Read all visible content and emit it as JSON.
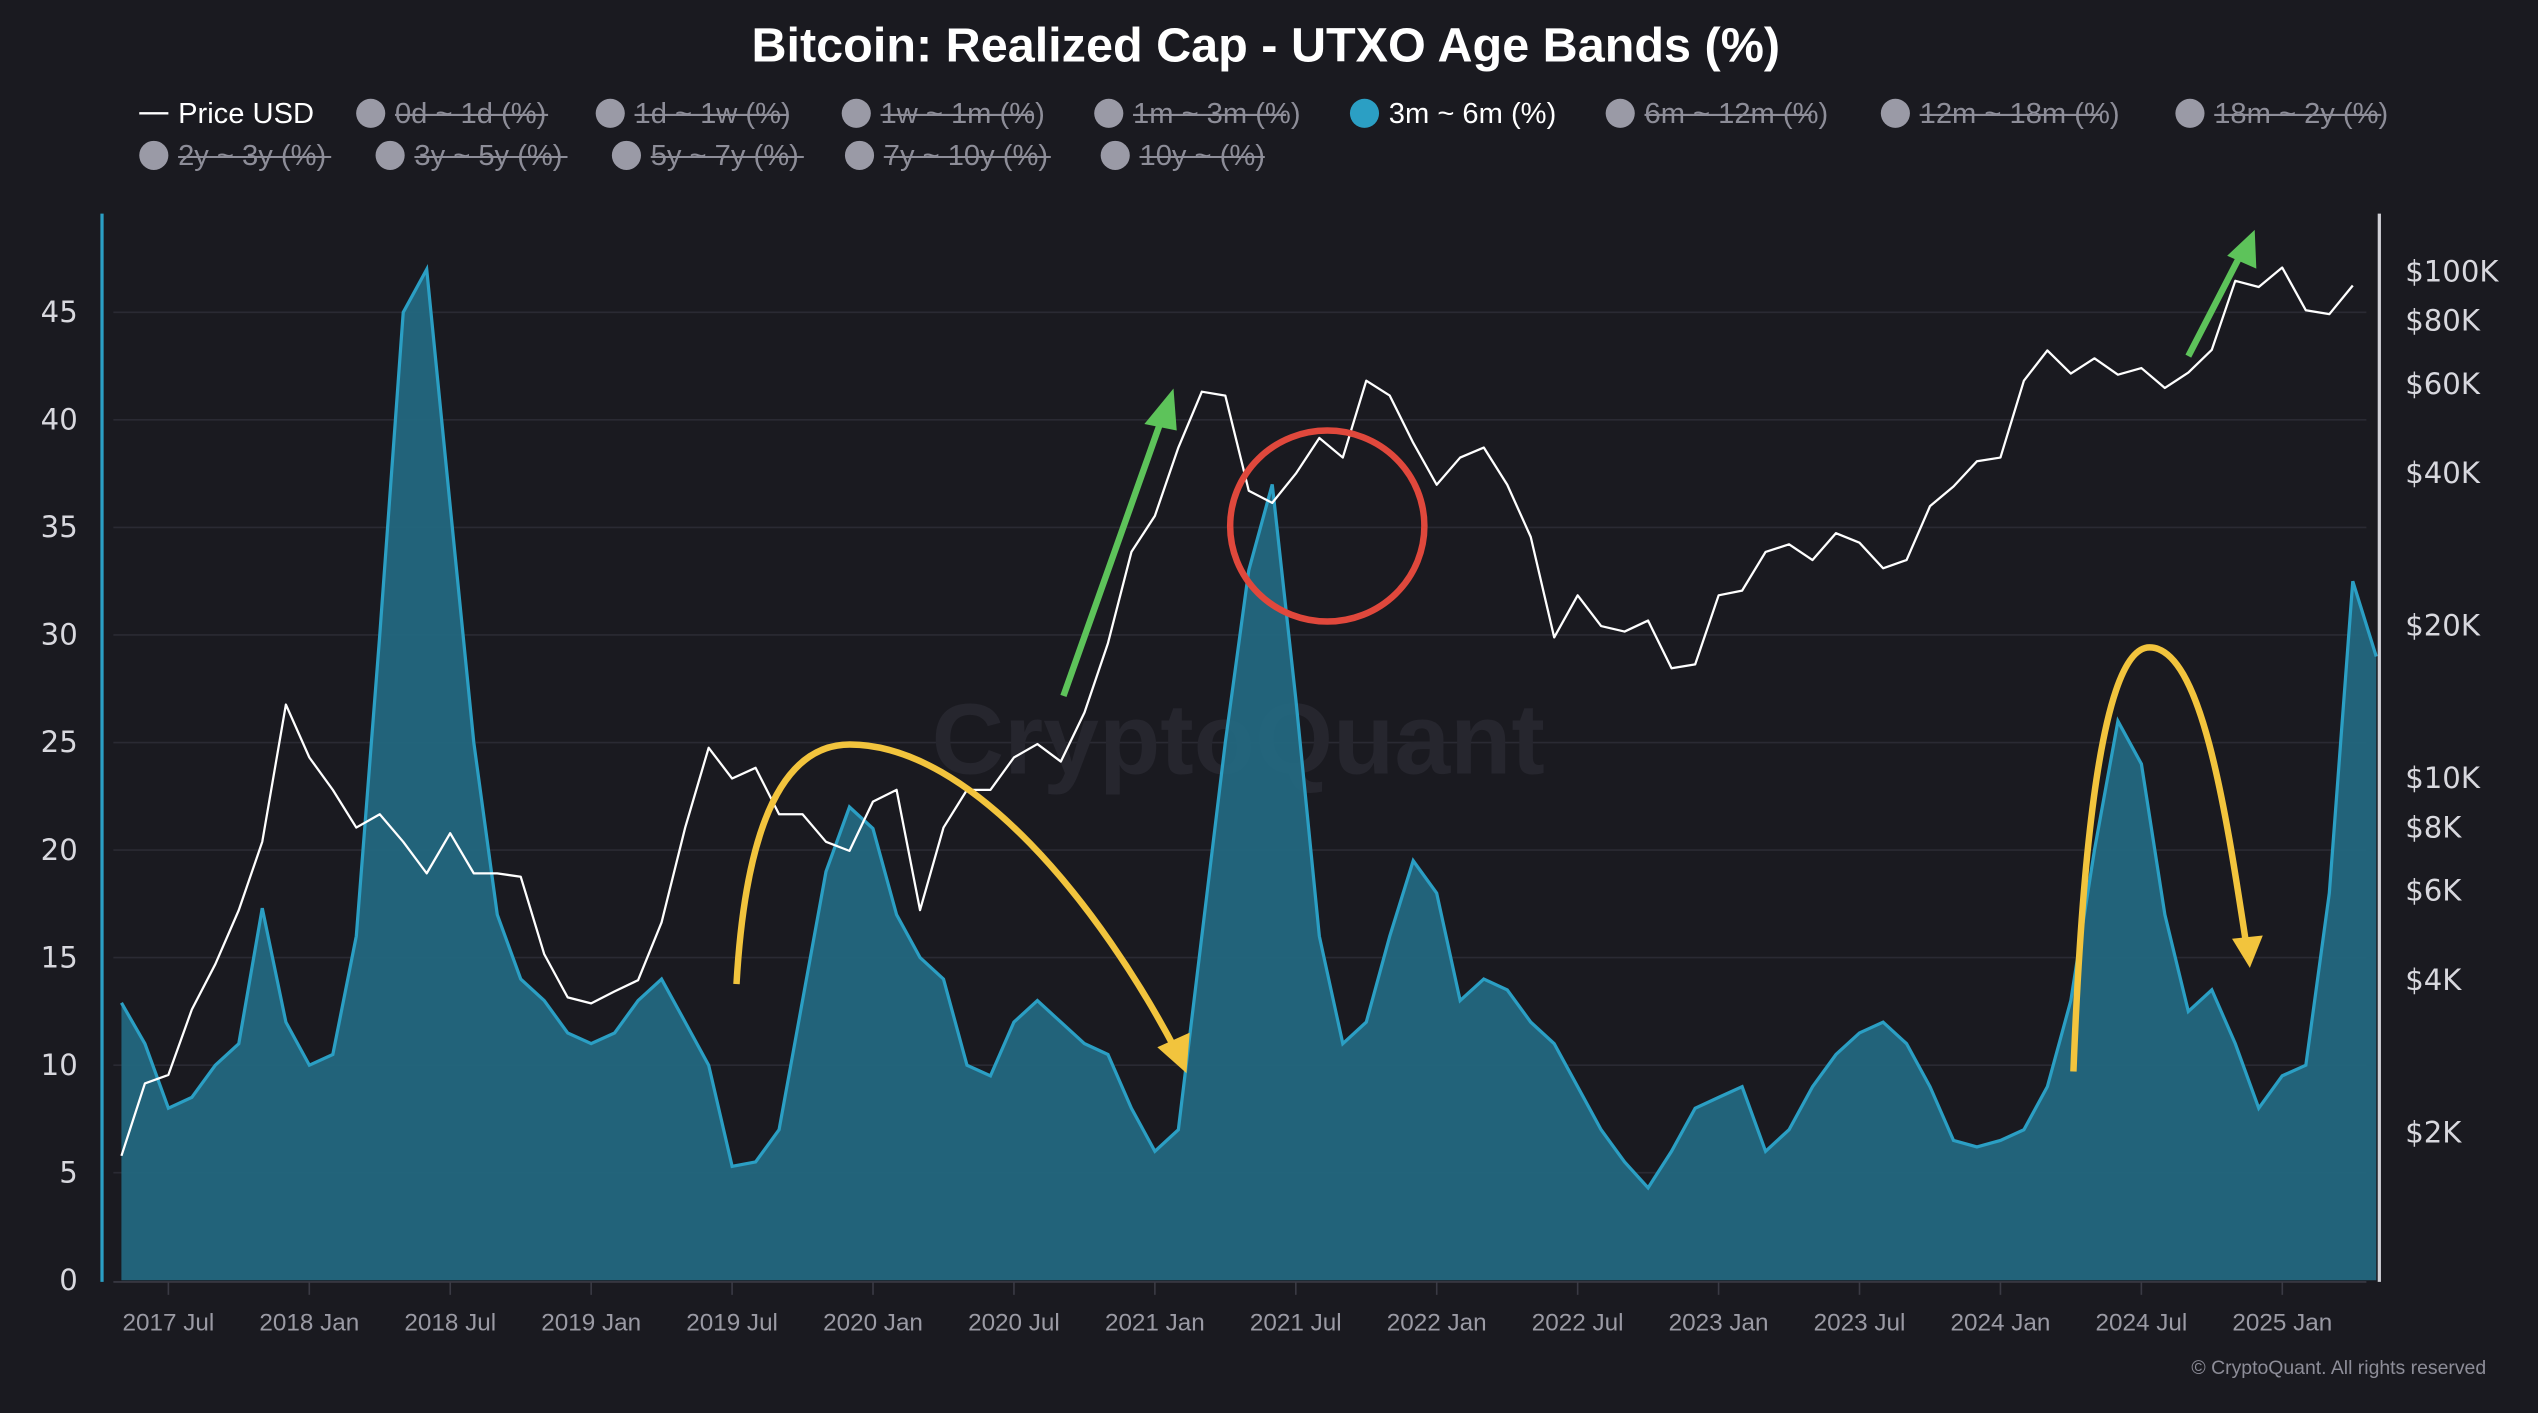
{
  "chart_data": {
    "type": "area",
    "title": "Bitcoin: Realized Cap - UTXO Age Bands (%)",
    "legend": [
      {
        "label": "Price USD",
        "type": "line",
        "color": "#ffffff",
        "enabled": true
      },
      {
        "label": "0d ~ 1d (%)",
        "enabled": false
      },
      {
        "label": "1d ~ 1w (%)",
        "enabled": false
      },
      {
        "label": "1w ~ 1m (%)",
        "enabled": false
      },
      {
        "label": "1m ~ 3m (%)",
        "enabled": false
      },
      {
        "label": "3m ~ 6m (%)",
        "color": "#2b9fc4",
        "enabled": true
      },
      {
        "label": "6m ~ 12m (%)",
        "enabled": false
      },
      {
        "label": "12m ~ 18m (%)",
        "enabled": false
      },
      {
        "label": "18m ~ 2y (%)",
        "enabled": false
      },
      {
        "label": "2y ~ 3y (%)",
        "enabled": false
      },
      {
        "label": "3y ~ 5y (%)",
        "enabled": false
      },
      {
        "label": "5y ~ 7y (%)",
        "enabled": false
      },
      {
        "label": "7y ~ 10y (%)",
        "enabled": false
      },
      {
        "label": "10y ~ (%)",
        "enabled": false
      }
    ],
    "x_ticks": [
      "2017 Jul",
      "2018 Jan",
      "2018 Jul",
      "2019 Jan",
      "2019 Jul",
      "2020 Jan",
      "2020 Jul",
      "2021 Jan",
      "2021 Jul",
      "2022 Jan",
      "2022 Jul",
      "2023 Jan",
      "2023 Jul",
      "2024 Jan",
      "2024 Jul",
      "2025 Jan"
    ],
    "y_left": {
      "label": "3m ~ 6m (%)",
      "ticks": [
        "0",
        "5",
        "10",
        "15",
        "20",
        "25",
        "30",
        "35",
        "40",
        "45"
      ],
      "range": [
        0,
        49
      ]
    },
    "y_right": {
      "label": "Price USD",
      "scale": "log",
      "ticks": [
        "$2K",
        "$4K",
        "$6K",
        "$8K",
        "$10K",
        "$20K",
        "$40K",
        "$60K",
        "$80K",
        "$100K"
      ]
    },
    "series": [
      {
        "name": "3m ~ 6m (%)",
        "type": "area",
        "color": "#2b9fc4",
        "fill": "#23677f",
        "points": [
          [
            "2017-05",
            12.9
          ],
          [
            "2017-06",
            11
          ],
          [
            "2017-07",
            8
          ],
          [
            "2017-08",
            8.5
          ],
          [
            "2017-09",
            10
          ],
          [
            "2017-10",
            11
          ],
          [
            "2017-11",
            17.3
          ],
          [
            "2017-12",
            12
          ],
          [
            "2018-01",
            10
          ],
          [
            "2018-02",
            10.5
          ],
          [
            "2018-03",
            16
          ],
          [
            "2018-04",
            30
          ],
          [
            "2018-05",
            45
          ],
          [
            "2018-06",
            47
          ],
          [
            "2018-07",
            36
          ],
          [
            "2018-08",
            25
          ],
          [
            "2018-09",
            17
          ],
          [
            "2018-10",
            14
          ],
          [
            "2018-11",
            13
          ],
          [
            "2018-12",
            11.5
          ],
          [
            "2019-01",
            11
          ],
          [
            "2019-02",
            11.5
          ],
          [
            "2019-03",
            13
          ],
          [
            "2019-04",
            14
          ],
          [
            "2019-05",
            12
          ],
          [
            "2019-06",
            10
          ],
          [
            "2019-07",
            5.3
          ],
          [
            "2019-08",
            5.5
          ],
          [
            "2019-09",
            7
          ],
          [
            "2019-10",
            13
          ],
          [
            "2019-11",
            19
          ],
          [
            "2019-12",
            22
          ],
          [
            "2020-01",
            21
          ],
          [
            "2020-02",
            17
          ],
          [
            "2020-03",
            15
          ],
          [
            "2020-04",
            14
          ],
          [
            "2020-05",
            10
          ],
          [
            "2020-06",
            9.5
          ],
          [
            "2020-07",
            12
          ],
          [
            "2020-08",
            13
          ],
          [
            "2020-09",
            12
          ],
          [
            "2020-10",
            11
          ],
          [
            "2020-11",
            10.5
          ],
          [
            "2020-12",
            8
          ],
          [
            "2021-01",
            6
          ],
          [
            "2021-02",
            7
          ],
          [
            "2021-03",
            16
          ],
          [
            "2021-04",
            25
          ],
          [
            "2021-05",
            33
          ],
          [
            "2021-06",
            37
          ],
          [
            "2021-07",
            27
          ],
          [
            "2021-08",
            16
          ],
          [
            "2021-09",
            11
          ],
          [
            "2021-10",
            12
          ],
          [
            "2021-11",
            16
          ],
          [
            "2021-12",
            19.5
          ],
          [
            "2022-01",
            18
          ],
          [
            "2022-02",
            13
          ],
          [
            "2022-03",
            14
          ],
          [
            "2022-04",
            13.5
          ],
          [
            "2022-05",
            12
          ],
          [
            "2022-06",
            11
          ],
          [
            "2022-07",
            9
          ],
          [
            "2022-08",
            7
          ],
          [
            "2022-09",
            5.5
          ],
          [
            "2022-10",
            4.3
          ],
          [
            "2022-11",
            6
          ],
          [
            "2022-12",
            8
          ],
          [
            "2023-01",
            8.5
          ],
          [
            "2023-02",
            9
          ],
          [
            "2023-03",
            6
          ],
          [
            "2023-04",
            7
          ],
          [
            "2023-05",
            9
          ],
          [
            "2023-06",
            10.5
          ],
          [
            "2023-07",
            11.5
          ],
          [
            "2023-08",
            12
          ],
          [
            "2023-09",
            11
          ],
          [
            "2023-10",
            9
          ],
          [
            "2023-11",
            6.5
          ],
          [
            "2023-12",
            6.2
          ],
          [
            "2024-01",
            6.5
          ],
          [
            "2024-02",
            7
          ],
          [
            "2024-03",
            9
          ],
          [
            "2024-04",
            13
          ],
          [
            "2024-05",
            20
          ],
          [
            "2024-06",
            26
          ],
          [
            "2024-07",
            24
          ],
          [
            "2024-08",
            17
          ],
          [
            "2024-09",
            12.5
          ],
          [
            "2024-10",
            13.5
          ],
          [
            "2024-11",
            11
          ],
          [
            "2024-12",
            8
          ],
          [
            "2025-01",
            9.5
          ],
          [
            "2025-02",
            10
          ],
          [
            "2025-03",
            18
          ],
          [
            "2025-04",
            32.5
          ],
          [
            "2025-05",
            29
          ]
        ]
      },
      {
        "name": "Price USD",
        "type": "line",
        "color": "#ffffff",
        "points": [
          [
            "2017-05",
            1800
          ],
          [
            "2017-06",
            2500
          ],
          [
            "2017-07",
            2600
          ],
          [
            "2017-08",
            3500
          ],
          [
            "2017-09",
            4300
          ],
          [
            "2017-10",
            5500
          ],
          [
            "2017-11",
            7500
          ],
          [
            "2017-12",
            14000
          ],
          [
            "2018-01",
            11000
          ],
          [
            "2018-02",
            9500
          ],
          [
            "2018-03",
            8000
          ],
          [
            "2018-04",
            8500
          ],
          [
            "2018-05",
            7500
          ],
          [
            "2018-06",
            6500
          ],
          [
            "2018-07",
            7800
          ],
          [
            "2018-08",
            6500
          ],
          [
            "2018-09",
            6500
          ],
          [
            "2018-10",
            6400
          ],
          [
            "2018-11",
            4500
          ],
          [
            "2018-12",
            3700
          ],
          [
            "2019-01",
            3600
          ],
          [
            "2019-02",
            3800
          ],
          [
            "2019-03",
            4000
          ],
          [
            "2019-04",
            5200
          ],
          [
            "2019-05",
            8000
          ],
          [
            "2019-06",
            11500
          ],
          [
            "2019-07",
            10000
          ],
          [
            "2019-08",
            10500
          ],
          [
            "2019-09",
            8500
          ],
          [
            "2019-10",
            8500
          ],
          [
            "2019-11",
            7500
          ],
          [
            "2019-12",
            7200
          ],
          [
            "2020-01",
            9000
          ],
          [
            "2020-02",
            9500
          ],
          [
            "2020-03",
            5500
          ],
          [
            "2020-04",
            8000
          ],
          [
            "2020-05",
            9500
          ],
          [
            "2020-06",
            9500
          ],
          [
            "2020-07",
            11000
          ],
          [
            "2020-08",
            11700
          ],
          [
            "2020-09",
            10800
          ],
          [
            "2020-10",
            13500
          ],
          [
            "2020-11",
            18500
          ],
          [
            "2020-12",
            28000
          ],
          [
            "2021-01",
            33000
          ],
          [
            "2021-02",
            45000
          ],
          [
            "2021-03",
            58000
          ],
          [
            "2021-04",
            57000
          ],
          [
            "2021-05",
            37000
          ],
          [
            "2021-06",
            35000
          ],
          [
            "2021-07",
            40000
          ],
          [
            "2021-08",
            47000
          ],
          [
            "2021-09",
            43000
          ],
          [
            "2021-10",
            61000
          ],
          [
            "2021-11",
            57000
          ],
          [
            "2021-12",
            46000
          ],
          [
            "2022-01",
            38000
          ],
          [
            "2022-02",
            43000
          ],
          [
            "2022-03",
            45000
          ],
          [
            "2022-04",
            38000
          ],
          [
            "2022-05",
            30000
          ],
          [
            "2022-06",
            19000
          ],
          [
            "2022-07",
            23000
          ],
          [
            "2022-08",
            20000
          ],
          [
            "2022-09",
            19500
          ],
          [
            "2022-10",
            20500
          ],
          [
            "2022-11",
            16500
          ],
          [
            "2022-12",
            16800
          ],
          [
            "2023-01",
            23000
          ],
          [
            "2023-02",
            23500
          ],
          [
            "2023-03",
            28000
          ],
          [
            "2023-04",
            29000
          ],
          [
            "2023-05",
            27000
          ],
          [
            "2023-06",
            30500
          ],
          [
            "2023-07",
            29200
          ],
          [
            "2023-08",
            26000
          ],
          [
            "2023-09",
            27000
          ],
          [
            "2023-10",
            34500
          ],
          [
            "2023-11",
            37700
          ],
          [
            "2023-12",
            42300
          ],
          [
            "2024-01",
            43000
          ],
          [
            "2024-02",
            61000
          ],
          [
            "2024-03",
            70000
          ],
          [
            "2024-04",
            63000
          ],
          [
            "2024-05",
            67500
          ],
          [
            "2024-06",
            62700
          ],
          [
            "2024-07",
            64600
          ],
          [
            "2024-08",
            59000
          ],
          [
            "2024-09",
            63300
          ],
          [
            "2024-10",
            70200
          ],
          [
            "2024-11",
            96000
          ],
          [
            "2024-12",
            93400
          ],
          [
            "2025-01",
            102000
          ],
          [
            "2025-02",
            84000
          ],
          [
            "2025-03",
            82500
          ],
          [
            "2025-04",
            94000
          ]
        ]
      }
    ],
    "annotations": [
      {
        "type": "arrow",
        "color": "#5dc35a",
        "desc": "green up arrow, 2020 Oct to 2021 Jan rally"
      },
      {
        "type": "circle",
        "color": "#e0483c",
        "desc": "red circle around 2021 Jul peak"
      },
      {
        "type": "arrow",
        "color": "#f2c43d",
        "desc": "yellow curved arrow 2019 Jul to 2021 Jan"
      },
      {
        "type": "arrow",
        "color": "#f2c43d",
        "desc": "yellow curved arrow 2024 Mar to 2024 Nov"
      },
      {
        "type": "arrow",
        "color": "#5dc35a",
        "desc": "green up arrow late 2024 rally"
      }
    ],
    "watermark": "CryptoQuant",
    "copyright": "© CryptoQuant. All rights reserved"
  },
  "colors": {
    "background": "#1a1a20",
    "area_line": "#2b9fc4",
    "area_fill": "#23677f",
    "price_line": "#ffffff",
    "legend_disabled": "#8d8d98",
    "grid": "#2a2a33"
  }
}
